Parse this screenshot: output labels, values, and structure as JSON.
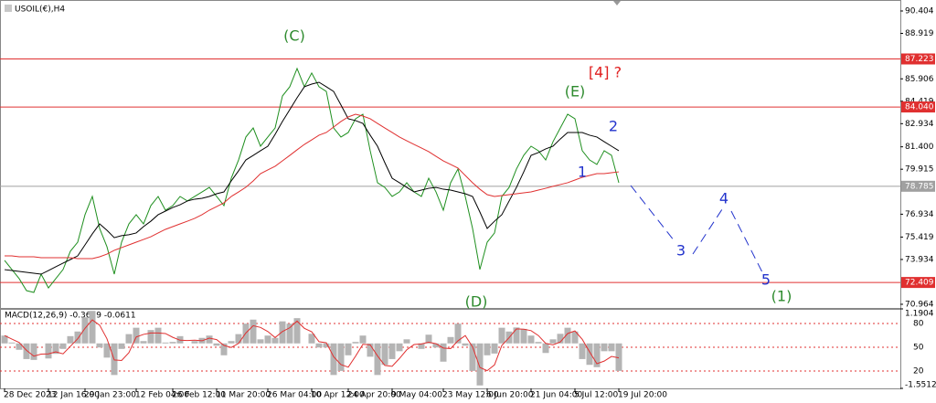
{
  "chart_data": [
    {
      "type": "line",
      "title": "USOIL(€),H4",
      "categories": [
        "28 Dec 2023",
        null,
        null,
        null,
        null,
        null,
        "12 Jan 16:00",
        null,
        null,
        null,
        null,
        "29 Jan 23:00",
        null,
        null,
        null,
        null,
        null,
        null,
        "12 Feb 04:00",
        null,
        null,
        null,
        null,
        "26 Feb 12:00",
        null,
        null,
        null,
        null,
        null,
        "11 Mar 20:00",
        null,
        null,
        null,
        null,
        null,
        null,
        "26 Mar 04:00",
        null,
        null,
        null,
        null,
        null,
        "10 Apr 12:00",
        null,
        null,
        null,
        null,
        "24 Apr 20:00",
        null,
        null,
        null,
        null,
        null,
        "9 May 04:00",
        null,
        null,
        null,
        null,
        null,
        null,
        "23 May 12:00",
        null,
        null,
        null,
        null,
        null,
        "6 Jun 20:00",
        null,
        null,
        null,
        null,
        null,
        "21 Jun 04:00",
        null,
        null,
        null,
        null,
        null,
        "5 Jul 12:00",
        null,
        null,
        null,
        null,
        null,
        "19 Jul 20:00"
      ],
      "series": [
        {
          "color": "#1f8f1f",
          "values": [
            73.87,
            73.27,
            72.66,
            71.87,
            71.75,
            72.96,
            72.05,
            72.66,
            73.27,
            74.48,
            75.08,
            76.9,
            78.11,
            75.99,
            74.78,
            72.96,
            75.08,
            76.29,
            76.9,
            76.29,
            77.5,
            78.11,
            77.2,
            77.5,
            78.11,
            77.81,
            78.11,
            78.41,
            78.71,
            78.11,
            77.5,
            79.32,
            80.53,
            82.05,
            82.65,
            81.44,
            82.05,
            82.65,
            84.77,
            85.38,
            86.59,
            85.38,
            86.29,
            85.38,
            85.07,
            82.65,
            82.05,
            82.35,
            83.26,
            83.56,
            81.14,
            79.02,
            78.71,
            78.11,
            78.41,
            79.02,
            78.41,
            78.11,
            79.32,
            78.41,
            77.2,
            79.02,
            79.93,
            78.11,
            75.99,
            73.27,
            75.08,
            75.69,
            78.11,
            78.71,
            79.93,
            80.84,
            81.44,
            81.14,
            80.53,
            81.74,
            82.65,
            83.56,
            83.26,
            81.14,
            80.53,
            80.23,
            81.14,
            80.84,
            79.02
          ]
        },
        {
          "color": "#000000",
          "values": [
            73.26,
            73.2,
            73.14,
            73.08,
            73.02,
            72.96,
            73.2,
            73.45,
            73.69,
            73.93,
            74.17,
            74.9,
            75.63,
            76.29,
            75.87,
            75.38,
            75.51,
            75.57,
            75.69,
            76.11,
            76.47,
            76.9,
            77.14,
            77.38,
            77.56,
            77.81,
            77.93,
            77.99,
            78.11,
            78.29,
            78.41,
            79.14,
            79.81,
            80.53,
            80.83,
            81.14,
            81.44,
            82.23,
            83.08,
            83.86,
            84.65,
            85.38,
            85.56,
            85.68,
            85.38,
            85.07,
            84.17,
            83.26,
            83.14,
            82.95,
            82.17,
            81.44,
            80.35,
            79.32,
            79.02,
            78.71,
            78.41,
            78.53,
            78.65,
            78.71,
            78.59,
            78.53,
            78.41,
            78.29,
            78.11,
            77.08,
            75.99,
            76.47,
            76.9,
            77.81,
            78.71,
            79.74,
            80.83,
            81.02,
            81.26,
            81.44,
            81.92,
            82.35,
            82.35,
            82.35,
            82.17,
            82.05,
            81.74,
            81.44,
            81.14
          ]
        },
        {
          "color": "#e03030",
          "values": [
            74.17,
            74.17,
            74.11,
            74.11,
            74.11,
            74.05,
            74.05,
            74.05,
            74.05,
            74.05,
            73.99,
            73.99,
            73.99,
            74.11,
            74.29,
            74.54,
            74.72,
            74.9,
            75.08,
            75.26,
            75.44,
            75.69,
            75.93,
            76.11,
            76.29,
            76.47,
            76.66,
            76.9,
            77.2,
            77.44,
            77.69,
            78.11,
            78.41,
            78.72,
            79.14,
            79.62,
            79.87,
            80.11,
            80.47,
            80.83,
            81.2,
            81.56,
            81.86,
            82.17,
            82.35,
            82.71,
            83.08,
            83.38,
            83.56,
            83.44,
            83.26,
            82.95,
            82.65,
            82.35,
            82.05,
            81.8,
            81.56,
            81.32,
            81.08,
            80.77,
            80.47,
            80.23,
            79.99,
            79.5,
            79.02,
            78.59,
            78.23,
            78.11,
            78.17,
            78.23,
            78.29,
            78.35,
            78.41,
            78.53,
            78.65,
            78.78,
            78.9,
            79.02,
            79.2,
            79.38,
            79.5,
            79.62,
            79.62,
            79.68,
            79.74
          ]
        }
      ],
      "ylim": [
        70.72,
        91.13
      ],
      "yticks": [
        90.404,
        88.919,
        85.906,
        84.419,
        82.934,
        {
          "value": 81.4,
          "label": "81.400"
        },
        79.915,
        76.934,
        75.419,
        73.934,
        70.964
      ],
      "levels": [
        {
          "value": 87.223,
          "label": "87.223",
          "color": "#e03030"
        },
        {
          "value": 84.04,
          "label": "84.040",
          "color": "#e03030"
        },
        {
          "value": 78.785,
          "label": "78.785",
          "color": "#a0a0a0"
        },
        {
          "value": 72.409,
          "label": "72.409",
          "color": "#e03030"
        }
      ],
      "annotations": [
        {
          "text": "(C)",
          "color": "#2e8b2e"
        },
        {
          "text": "[4] ?",
          "color": "#e02020"
        },
        {
          "text": "(E)",
          "color": "#2e8b2e"
        },
        {
          "text": "2",
          "color": "#2233cc"
        },
        {
          "text": "1",
          "color": "#2233cc"
        },
        {
          "text": "(D)",
          "color": "#2e8b2e"
        },
        {
          "text": "3",
          "color": "#2233cc"
        },
        {
          "text": "4",
          "color": "#2233cc"
        },
        {
          "text": "5",
          "color": "#2233cc"
        },
        {
          "text": "(1)",
          "color": "#2e8b2e"
        }
      ]
    },
    {
      "type": "bar",
      "title": "MACD(12,26,9) -0.3639 -0.0611",
      "series": [
        {
          "type": "bar",
          "color": "#b4b4b4",
          "values": [
            0.27,
            0.03,
            -0.22,
            -0.54,
            -0.57,
            0.0,
            -0.52,
            -0.36,
            -0.19,
            0.25,
            0.41,
            0.9,
            1.12,
            -0.14,
            -0.49,
            -1.09,
            -0.19,
            0.32,
            0.54,
            0.08,
            0.46,
            0.54,
            0.03,
            0.05,
            0.25,
            0.0,
            0.08,
            0.19,
            0.27,
            -0.08,
            -0.41,
            0.08,
            0.32,
            0.68,
            0.82,
            0.14,
            0.27,
            0.19,
            0.76,
            0.68,
            0.87,
            0.0,
            0.33,
            -0.14,
            -0.14,
            -1.09,
            -0.95,
            -0.41,
            0.05,
            0.27,
            -0.46,
            -1.09,
            -0.74,
            -0.54,
            -0.27,
            0.14,
            0.0,
            -0.19,
            0.3,
            -0.14,
            -0.63,
            0.22,
            0.68,
            -0.08,
            -0.95,
            -1.45,
            -0.41,
            -0.35,
            0.54,
            0.41,
            0.55,
            0.5,
            0.27,
            0.05,
            -0.33,
            0.14,
            0.33,
            0.54,
            0.41,
            -0.54,
            -0.74,
            -0.82,
            -0.27,
            -0.27,
            -0.95
          ]
        },
        {
          "type": "line",
          "color": "#e03030",
          "values": [
            0.27,
            0.15,
            0.03,
            -0.24,
            -0.44,
            -0.37,
            -0.36,
            -0.29,
            -0.36,
            -0.1,
            0.16,
            0.52,
            0.81,
            0.63,
            0.16,
            -0.57,
            -0.59,
            -0.32,
            0.22,
            0.31,
            0.36,
            0.36,
            0.34,
            0.21,
            0.11,
            0.1,
            0.11,
            0.09,
            0.18,
            0.13,
            -0.07,
            -0.14,
            0.0,
            0.36,
            0.61,
            0.55,
            0.41,
            0.2,
            0.41,
            0.54,
            0.77,
            0.52,
            0.4,
            0.06,
            0.02,
            -0.46,
            -0.73,
            -0.82,
            -0.44,
            -0.03,
            -0.05,
            -0.43,
            -0.76,
            -0.79,
            -0.52,
            -0.22,
            -0.04,
            -0.02,
            0.04,
            -0.01,
            -0.16,
            -0.18,
            0.09,
            0.27,
            -0.12,
            -0.83,
            -0.94,
            -0.74,
            -0.07,
            0.2,
            0.5,
            0.49,
            0.44,
            0.27,
            0.0,
            -0.05,
            0.05,
            0.34,
            0.43,
            0.14,
            -0.29,
            -0.7,
            -0.61,
            -0.45,
            -0.5
          ]
        }
      ],
      "ylim": [
        -1.5512,
        1.1904
      ],
      "yticks": [
        1.1904,
        -1.5512
      ],
      "y2lim": [
        -2,
        98.5
      ],
      "y2ticks": [
        20,
        50,
        80
      ],
      "y2color": "#e03030"
    }
  ]
}
